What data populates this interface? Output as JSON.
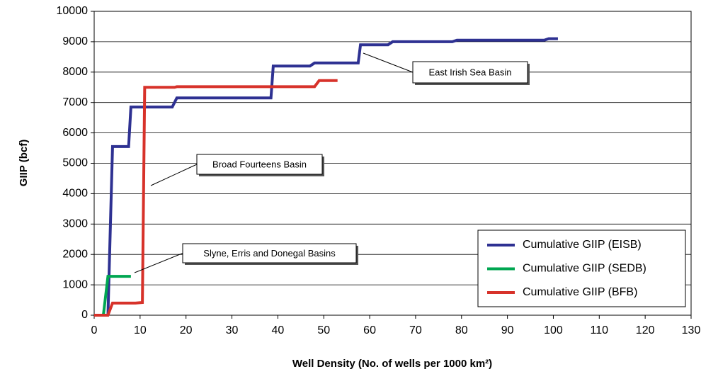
{
  "chart_data": {
    "type": "line",
    "xlabel": "Well Density (No. of wells per 1000 km²)",
    "ylabel": "GIIP (bcf)",
    "xlim": [
      0,
      130
    ],
    "xticks": [
      0,
      10,
      20,
      30,
      40,
      50,
      60,
      70,
      80,
      90,
      100,
      110,
      120,
      130
    ],
    "ylim": [
      0,
      10000
    ],
    "yticks": [
      0,
      1000,
      2000,
      3000,
      4000,
      5000,
      6000,
      7000,
      8000,
      9000,
      10000
    ],
    "grid": true,
    "legend": "lower right",
    "series": [
      {
        "name": "Cumulative GIIP (EISB)",
        "color": "#2e3192",
        "x": [
          3,
          4,
          7.5,
          8,
          17,
          18,
          38.5,
          39,
          47,
          48,
          57.5,
          58,
          64,
          65,
          78,
          79,
          98,
          99,
          101
        ],
        "values": [
          0,
          5550,
          5550,
          6850,
          6850,
          7150,
          7150,
          8200,
          8200,
          8300,
          8300,
          8900,
          8900,
          9000,
          9000,
          9050,
          9050,
          9100,
          9100
        ]
      },
      {
        "name": "Cumulative GIIP (SEDB)",
        "color": "#00a651",
        "x": [
          2,
          3,
          8
        ],
        "values": [
          0,
          1280,
          1280
        ]
      },
      {
        "name": "Cumulative GIIP (BFB)",
        "color": "#d7322a",
        "x": [
          0,
          3,
          4,
          9,
          10.5,
          11,
          17.5,
          18,
          48,
          49,
          53
        ],
        "values": [
          0,
          0,
          400,
          400,
          420,
          7500,
          7500,
          7520,
          7520,
          7720,
          7720
        ]
      }
    ],
    "annotations": [
      "East Irish Sea Basin",
      "Broad Fourteens Basin",
      "Slyne, Erris and Donegal Basins"
    ]
  }
}
